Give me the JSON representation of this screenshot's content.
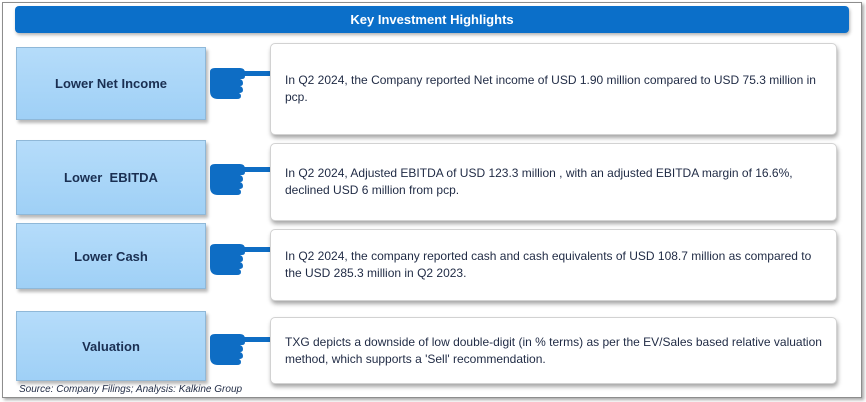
{
  "header": {
    "title": "Key Investment Highlights"
  },
  "highlights": [
    {
      "label": "Lower Net Income",
      "text": "In Q2 2024, the Company reported  Net income of USD 1.90  million compared to USD 75.3 million in pcp."
    },
    {
      "label": "Lower  EBITDA",
      "text": "In Q2 2024,  Adjusted EBITDA of USD 123.3 million , with an adjusted EBITDA margin of 16.6%, declined USD 6 million from pcp."
    },
    {
      "label": "Lower Cash",
      "text": "In Q2 2024,  the company reported cash and cash equivalents of USD 108.7 million as compared to the USD 285.3 million in Q2 2023."
    },
    {
      "label": "Valuation",
      "text": "TXG depicts a downside of low double-digit (in % terms) as per the EV/Sales based relative valuation method, which supports a 'Sell' recommendation."
    }
  ],
  "icons": {
    "pointer": "pointing-hand-icon"
  },
  "colors": {
    "title_bar": "#0b6fc9",
    "label_fill": "#a8d5f8",
    "hand": "#0e6dc4",
    "text": "#1f2a44"
  },
  "footer": {
    "source": "Source: Company Filings; Analysis: Kalkine Group"
  }
}
